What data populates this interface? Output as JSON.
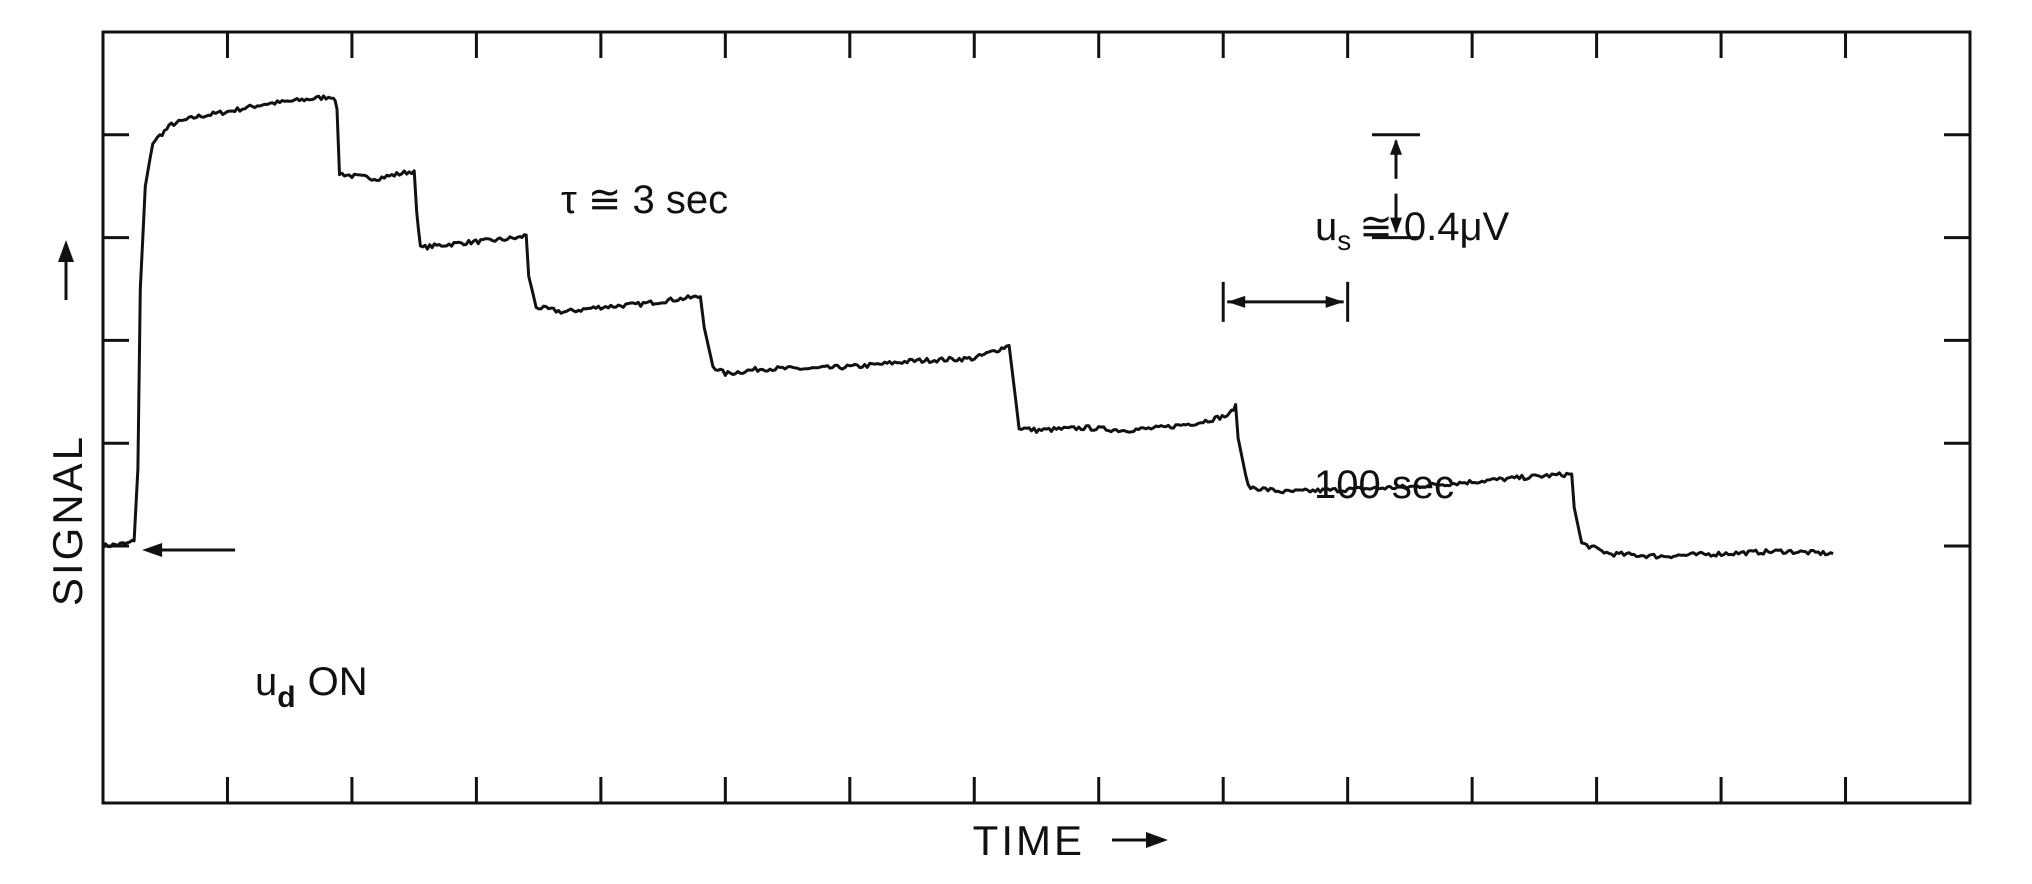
{
  "chart_data": {
    "type": "line",
    "title": "",
    "xlabel": "TIME",
    "ylabel": "SIGNAL",
    "x_unit": "sec",
    "y_unit": "µV",
    "xlim": [
      0,
      1500
    ],
    "ylim": [
      -1.0,
      2.0
    ],
    "grid": false,
    "tick_marks": {
      "x_every": 100,
      "y_every": 0.4
    },
    "series": [
      {
        "values": [
          [
            0,
            0.0
          ],
          [
            20,
            0.01
          ],
          [
            25,
            0.02
          ],
          [
            28,
            0.3
          ],
          [
            30,
            1.0
          ],
          [
            34,
            1.4
          ],
          [
            40,
            1.57
          ],
          [
            55,
            1.64
          ],
          [
            75,
            1.67
          ],
          [
            100,
            1.69
          ],
          [
            130,
            1.72
          ],
          [
            150,
            1.73
          ],
          [
            185,
            1.75
          ],
          [
            188,
            1.7
          ],
          [
            190,
            1.45
          ],
          [
            200,
            1.44
          ],
          [
            220,
            1.43
          ],
          [
            240,
            1.45
          ],
          [
            250,
            1.46
          ],
          [
            252,
            1.3
          ],
          [
            255,
            1.16
          ],
          [
            270,
            1.17
          ],
          [
            290,
            1.18
          ],
          [
            315,
            1.19
          ],
          [
            335,
            1.2
          ],
          [
            340,
            1.21
          ],
          [
            342,
            1.05
          ],
          [
            348,
            0.93
          ],
          [
            370,
            0.91
          ],
          [
            400,
            0.93
          ],
          [
            430,
            0.94
          ],
          [
            460,
            0.96
          ],
          [
            480,
            0.97
          ],
          [
            483,
            0.85
          ],
          [
            490,
            0.7
          ],
          [
            500,
            0.67
          ],
          [
            530,
            0.69
          ],
          [
            570,
            0.69
          ],
          [
            610,
            0.7
          ],
          [
            650,
            0.72
          ],
          [
            700,
            0.73
          ],
          [
            728,
            0.78
          ],
          [
            730,
            0.7
          ],
          [
            736,
            0.46
          ],
          [
            750,
            0.45
          ],
          [
            790,
            0.46
          ],
          [
            820,
            0.45
          ],
          [
            850,
            0.46
          ],
          [
            880,
            0.48
          ],
          [
            905,
            0.51
          ],
          [
            910,
            0.55
          ],
          [
            912,
            0.42
          ],
          [
            920,
            0.23
          ],
          [
            950,
            0.21
          ],
          [
            1000,
            0.22
          ],
          [
            1050,
            0.23
          ],
          [
            1100,
            0.25
          ],
          [
            1150,
            0.27
          ],
          [
            1180,
            0.28
          ],
          [
            1182,
            0.15
          ],
          [
            1188,
            0.01
          ],
          [
            1210,
            -0.03
          ],
          [
            1250,
            -0.04
          ],
          [
            1300,
            -0.03
          ],
          [
            1350,
            -0.02
          ],
          [
            1390,
            -0.03
          ]
        ]
      }
    ],
    "annotations": {
      "time_constant": "τ ≅ 3 sec",
      "scale_bar_y_label": "u",
      "scale_bar_y_sub": "s",
      "scale_bar_y_value": "≅ 0.4μV",
      "scale_bar_y_magnitude": 0.4,
      "scale_bar_x_label": "100 sec",
      "scale_bar_x_magnitude": 100,
      "event_label": "u",
      "event_sub": "d",
      "event_suffix": "ON",
      "event_time": 25
    }
  }
}
